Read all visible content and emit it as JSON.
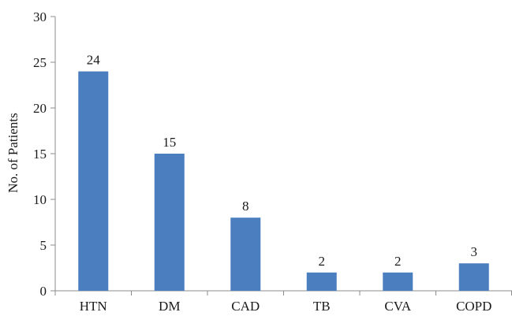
{
  "chart_data": {
    "type": "bar",
    "categories": [
      "HTN",
      "DM",
      "CAD",
      "TB",
      "CVA",
      "COPD"
    ],
    "values": [
      24,
      15,
      8,
      2,
      2,
      3
    ],
    "data_labels": [
      "24",
      "15",
      "8",
      "2",
      "2",
      "3"
    ],
    "title": "",
    "xlabel": "",
    "ylabel": "No. of Patients",
    "ylim": [
      0,
      30
    ],
    "yticks": [
      0,
      5,
      10,
      15,
      20,
      25,
      30
    ],
    "grid": false,
    "legend": "none",
    "bar_color": "#4a7ebf",
    "axis_color": "#8c8c8c",
    "text_color": "#1a1a1a"
  }
}
